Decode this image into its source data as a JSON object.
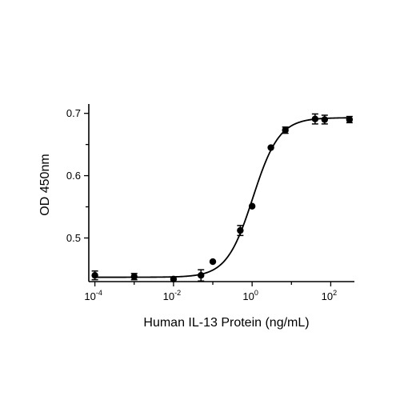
{
  "chart_data": {
    "type": "scatter",
    "xlabel": "Human IL-13 Protein (ng/mL)",
    "ylabel": "OD 450nm",
    "x_scale": "log10",
    "xlim": [
      7e-05,
      400
    ],
    "ylim": [
      0.43,
      0.715
    ],
    "x_ticks": [
      {
        "value": 0.0001,
        "base": "10",
        "exp": "-4"
      },
      {
        "value": 0.01,
        "base": "10",
        "exp": "-2"
      },
      {
        "value": 1,
        "base": "10",
        "exp": "0"
      },
      {
        "value": 100,
        "base": "10",
        "exp": "2"
      }
    ],
    "y_ticks": [
      {
        "value": 0.5,
        "label": "0.5"
      },
      {
        "value": 0.6,
        "label": "0.6"
      },
      {
        "value": 0.7,
        "label": "0.7"
      }
    ],
    "grid": false,
    "legend": "none",
    "points": [
      {
        "x": 0.0001,
        "y": 0.44,
        "err": 0.007
      },
      {
        "x": 0.001,
        "y": 0.438,
        "err": 0.005
      },
      {
        "x": 0.01,
        "y": 0.434,
        "err": 0.0
      },
      {
        "x": 0.05,
        "y": 0.44,
        "err": 0.009
      },
      {
        "x": 0.1,
        "y": 0.462,
        "err": 0.0
      },
      {
        "x": 0.5,
        "y": 0.512,
        "err": 0.008
      },
      {
        "x": 1,
        "y": 0.551,
        "err": 0.0
      },
      {
        "x": 3,
        "y": 0.645,
        "err": 0.0
      },
      {
        "x": 7,
        "y": 0.673,
        "err": 0.005
      },
      {
        "x": 40,
        "y": 0.691,
        "err": 0.008
      },
      {
        "x": 70,
        "y": 0.69,
        "err": 0.007
      },
      {
        "x": 300,
        "y": 0.69,
        "err": 0.005
      }
    ],
    "fit_curve": {
      "model": "4PL",
      "bottom": 0.437,
      "top": 0.693,
      "ec50": 1.05,
      "hill": 1.3
    }
  }
}
